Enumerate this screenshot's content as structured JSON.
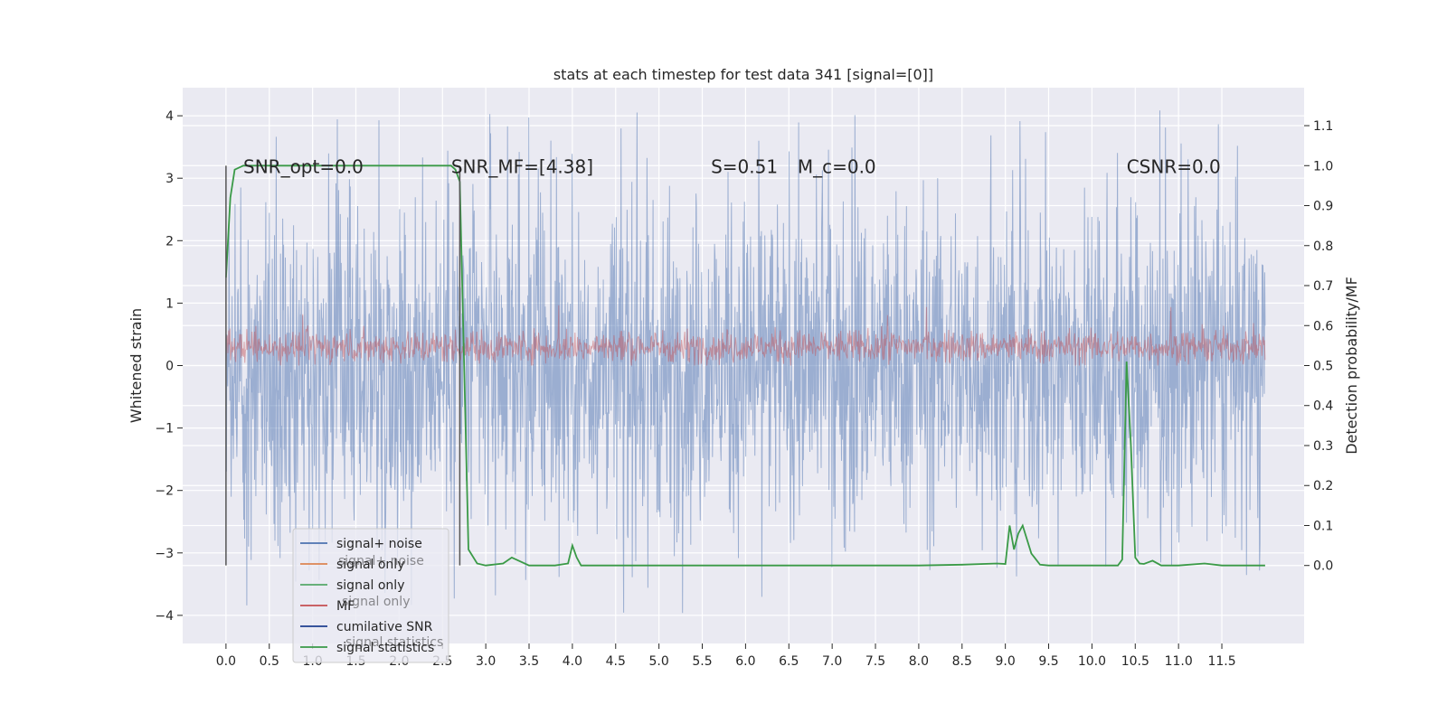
{
  "chart_data": {
    "type": "line",
    "title": "stats at each timestep for test data 341 [signal=[0]]",
    "xlabel": "",
    "ylabel": "Whitened strain",
    "y2label": "Detection probability/MF",
    "xlim": [
      -0.5,
      12.45
    ],
    "ylim": [
      -4.45,
      4.45
    ],
    "y2lim": [
      -0.195,
      1.195
    ],
    "grid": true,
    "x_ticks": [
      "0.0",
      "0.5",
      "1.0",
      "1.5",
      "2.0",
      "2.5",
      "3.0",
      "3.5",
      "4.0",
      "4.5",
      "5.0",
      "5.5",
      "6.0",
      "6.5",
      "7.0",
      "7.5",
      "8.0",
      "8.5",
      "9.0",
      "9.5",
      "10.0",
      "10.5",
      "11.0",
      "11.5"
    ],
    "y_ticks": [
      "−4",
      "−3",
      "−2",
      "−1",
      "0",
      "1",
      "2",
      "3",
      "4"
    ],
    "y2_ticks": [
      "0.0",
      "0.1",
      "0.2",
      "0.3",
      "0.4",
      "0.5",
      "0.6",
      "0.7",
      "0.8",
      "0.9",
      "1.0",
      "1.1"
    ],
    "annotations": [
      {
        "text": "SNR_opt=0.0",
        "x": 0.2,
        "y": 3.2
      },
      {
        "text": "SNR_MF=[4.38]",
        "x": 2.6,
        "y": 3.2,
        "math": true
      },
      {
        "text": "S=0.51",
        "x": 5.6,
        "y": 3.2,
        "math": true
      },
      {
        "text": "M_c=0.0",
        "x": 6.6,
        "y": 3.2,
        "math": true
      },
      {
        "text": "CSNR=0.0",
        "x": 10.4,
        "y": 3.2
      }
    ],
    "vlines": [
      {
        "x": 0.0,
        "ymin": -3.2,
        "ymax": 3.2
      },
      {
        "x": 2.7,
        "ymin": -3.2,
        "ymax": 3.2
      }
    ],
    "legend": {
      "placement": "lower-left",
      "entries": [
        {
          "name": "signal+ noise",
          "color": "#4c72b0"
        },
        {
          "name": "signal only",
          "color": "#dd8452"
        },
        {
          "name": "signal only",
          "color": "#55a868"
        },
        {
          "name": "MF",
          "color": "#c44e52"
        },
        {
          "name": "cumilative SNR",
          "color": "#1f3f8f"
        },
        {
          "name": "signal statistics",
          "color": "#3a9a47"
        }
      ],
      "ghost_entries": [
        "signal+ noise",
        "signal only",
        "signal statistics"
      ]
    },
    "series": [
      {
        "name": "signal+ noise",
        "color": "#4c72b0",
        "alpha": 0.5,
        "x_range": [
          0.0,
          12.0
        ],
        "samples": 2400,
        "amplitude": 1.3,
        "max": 4.1,
        "min": -4.1
      },
      {
        "name": "MF",
        "color": "#c44e52",
        "alpha": 0.45,
        "x_range": [
          0.0,
          12.0
        ],
        "samples": 1600,
        "base": 0.0,
        "typical_max": 0.6,
        "max": 1.0
      },
      {
        "name": "signal statistics",
        "color": "#3a9a47",
        "axis": "right",
        "x": [
          0.0,
          0.05,
          0.1,
          0.2,
          0.5,
          1.0,
          1.5,
          2.0,
          2.5,
          2.6,
          2.65,
          2.7,
          2.75,
          2.8,
          2.9,
          3.0,
          3.2,
          3.3,
          3.5,
          3.8,
          3.95,
          4.0,
          4.05,
          4.1,
          4.5,
          5.0,
          6.0,
          7.0,
          8.0,
          8.5,
          8.9,
          9.0,
          9.05,
          9.1,
          9.15,
          9.2,
          9.3,
          9.4,
          9.5,
          10.0,
          10.3,
          10.35,
          10.4,
          10.45,
          10.5,
          10.55,
          10.6,
          10.7,
          10.8,
          11.0,
          11.3,
          11.5,
          12.0
        ],
        "y": [
          0.72,
          0.92,
          0.99,
          1.0,
          1.0,
          1.0,
          1.0,
          1.0,
          1.0,
          1.0,
          0.99,
          0.96,
          0.5,
          0.04,
          0.005,
          0.0,
          0.005,
          0.02,
          0.0,
          0.0,
          0.005,
          0.05,
          0.02,
          0.0,
          0.0,
          0.0,
          0.0,
          0.0,
          0.0,
          0.002,
          0.005,
          0.004,
          0.1,
          0.04,
          0.08,
          0.1,
          0.03,
          0.002,
          0.0,
          0.0,
          0.0,
          0.015,
          0.51,
          0.3,
          0.02,
          0.005,
          0.004,
          0.012,
          0.0,
          0.0,
          0.005,
          0.0,
          0.0
        ]
      }
    ]
  }
}
